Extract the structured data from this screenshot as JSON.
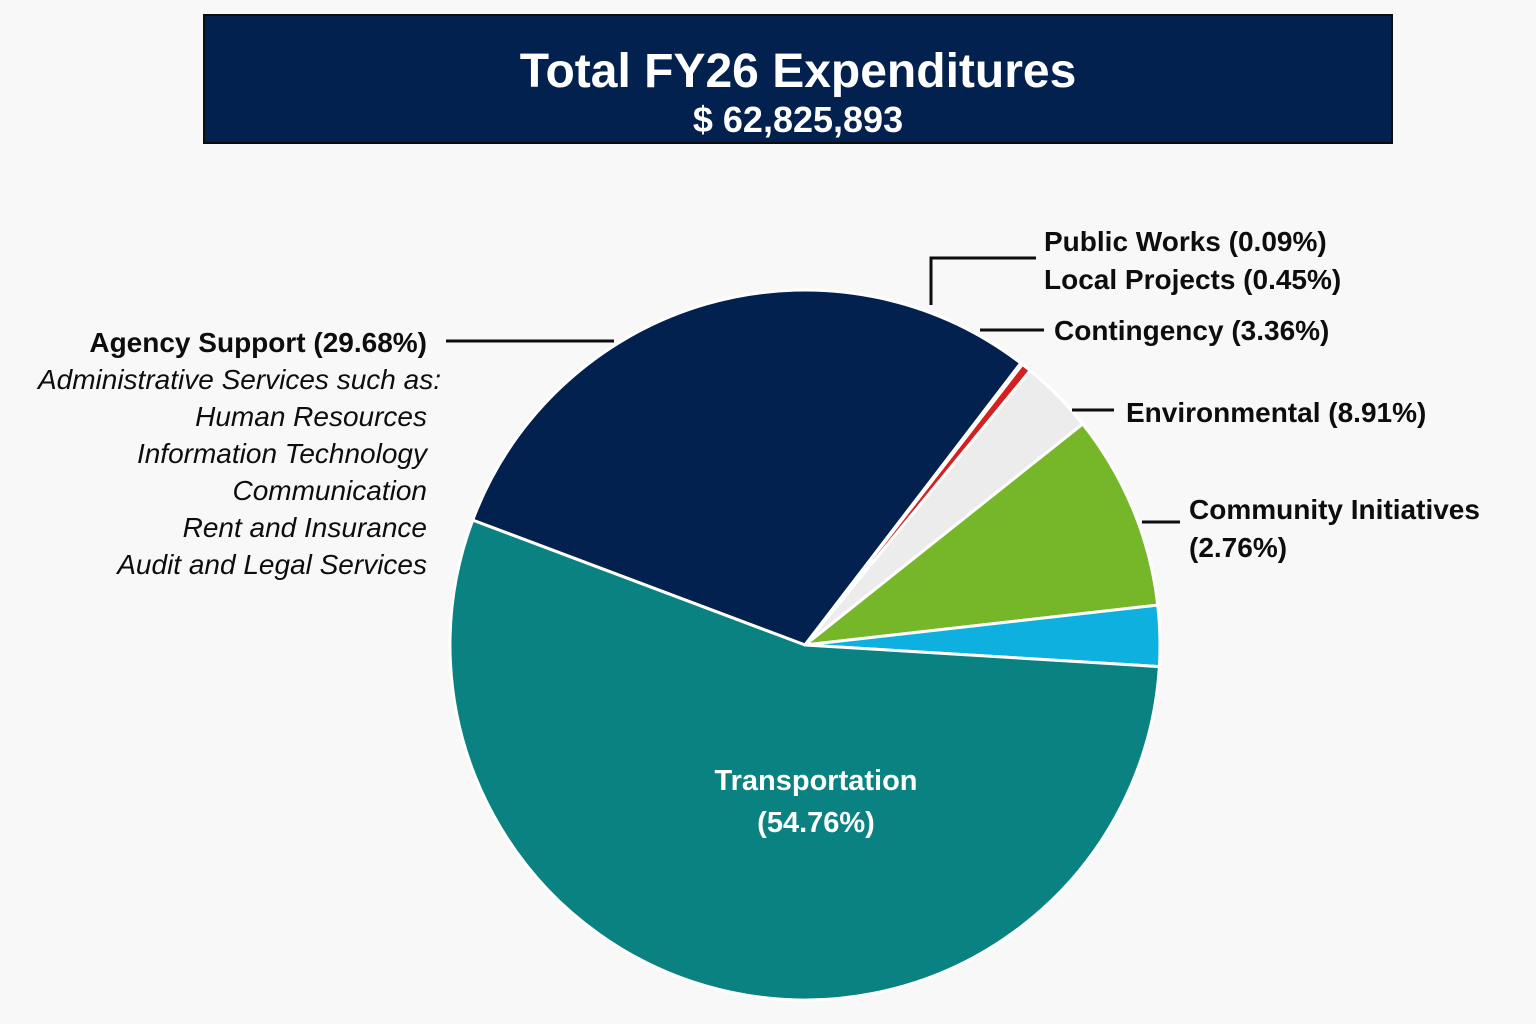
{
  "title": "Total FY26 Expenditures",
  "subtitle": "$ 62,825,893",
  "chart_data": {
    "type": "pie",
    "title": "Total FY26 Expenditures",
    "subtitle": "$ 62,825,893",
    "slices": [
      {
        "key": "agency-support",
        "label": "Agency Support",
        "value": 29.68,
        "pct_label": "(29.68%)",
        "color": "#03214f"
      },
      {
        "key": "public-works",
        "label": "Public Works",
        "value": 0.09,
        "pct_label": "(0.09%)",
        "color": "#0d0d0d"
      },
      {
        "key": "local-projects",
        "label": "Local Projects",
        "value": 0.45,
        "pct_label": "(0.45%)",
        "color": "#d62020"
      },
      {
        "key": "contingency",
        "label": "Contingency",
        "value": 3.36,
        "pct_label": "(3.36%)",
        "color": "#ececec"
      },
      {
        "key": "environmental",
        "label": "Environmental",
        "value": 8.91,
        "pct_label": "(8.91%)",
        "color": "#76b72a"
      },
      {
        "key": "community-initiatives",
        "label": "Community Initiatives",
        "value": 2.76,
        "pct_label": "(2.76%)",
        "color": "#0eb0e0"
      },
      {
        "key": "transportation",
        "label": "Transportation",
        "value": 54.76,
        "pct_label": "(54.76%)",
        "color": "#0a8282"
      }
    ],
    "annotations": {
      "agency_support_heading": "Agency Support (29.68%)",
      "agency_support_details": [
        "Administrative Services such as:",
        "Human Resources",
        "Information Technology",
        "Communication",
        "Rent and Insurance",
        "Audit and Legal Services"
      ],
      "public_works": "Public Works (0.09%)",
      "local_projects": "Local Projects (0.45%)",
      "contingency": "Contingency (3.36%)",
      "environmental": "Environmental (8.91%)",
      "community_initiatives": "Community Initiatives",
      "community_initiatives_pct": "(2.76%)",
      "transportation": "Transportation",
      "transportation_pct": "(54.76%)"
    }
  }
}
